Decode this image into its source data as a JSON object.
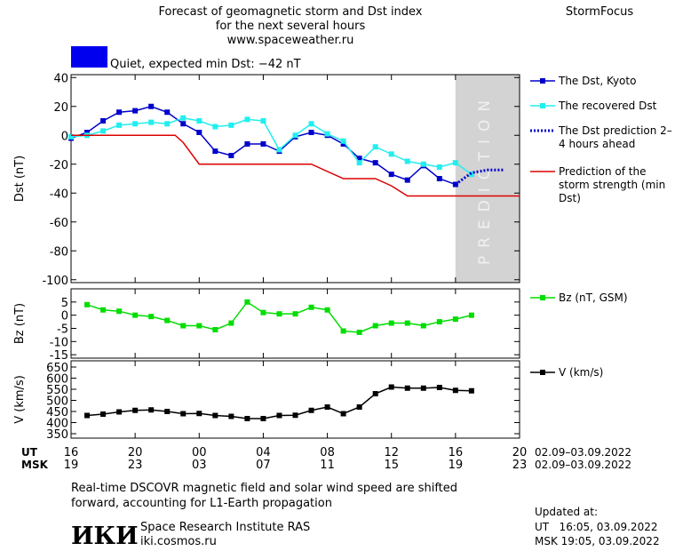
{
  "header": {
    "title_lines": [
      "Forecast of geomagnetic storm and Dst index",
      "for the next several hours",
      "www.spaceweather.ru"
    ],
    "brand": "StormFocus",
    "status": "Quiet, expected min Dst: −42 nT",
    "status_color": "#0000ee"
  },
  "chart_data": [
    {
      "type": "line",
      "ylabel": "Dst (nT)",
      "ylim": [
        -102,
        42
      ],
      "yticks": [
        40,
        20,
        0,
        -20,
        -40,
        -60,
        -80,
        -100
      ],
      "prediction_label": "PREDICTION",
      "series": [
        {
          "name": "The Dst, Kyoto",
          "color": "#0000cc",
          "style": "markers",
          "x": [
            16,
            17,
            18,
            19,
            20,
            21,
            22,
            23,
            24,
            25,
            26,
            27,
            28,
            29,
            30,
            31,
            32,
            33,
            34,
            35,
            36,
            37,
            38,
            39,
            40
          ],
          "values": [
            -2,
            2,
            10,
            16,
            17,
            20,
            16,
            8,
            2,
            -11,
            -14,
            -6,
            -6,
            -11,
            -1,
            2,
            0,
            -6,
            -16,
            -19,
            -27,
            -31,
            -21,
            -30,
            -34
          ]
        },
        {
          "name": "The recovered Dst",
          "color": "#22eeee",
          "style": "markers",
          "x": [
            16,
            17,
            18,
            19,
            20,
            21,
            22,
            23,
            24,
            25,
            26,
            27,
            28,
            29,
            30,
            31,
            32,
            33,
            34,
            35,
            36,
            37,
            38,
            39,
            40,
            41
          ],
          "values": [
            -1,
            0,
            3,
            7,
            8,
            9,
            8,
            12,
            10,
            6,
            7,
            11,
            10,
            -10,
            0,
            8,
            1,
            -4,
            -19,
            -8,
            -13,
            -18,
            -20,
            -22,
            -19,
            -27
          ]
        },
        {
          "name": "The Dst prediction 2–4 hours ahead",
          "color": "#0000cc",
          "style": "dotted",
          "x": [
            40,
            41,
            42,
            43
          ],
          "values": [
            -34,
            -26,
            -24,
            -24
          ]
        },
        {
          "name": "Prediction of the storm strength (min Dst)",
          "color": "#dd0000",
          "style": "plain",
          "x": [
            16,
            22.5,
            23,
            24,
            31,
            33,
            35,
            36,
            37,
            44
          ],
          "values": [
            0,
            0,
            -5,
            -20,
            -20,
            -30,
            -30,
            -35,
            -42,
            -42
          ]
        }
      ]
    },
    {
      "type": "line",
      "ylabel": "Bz (nT)",
      "ylim": [
        -16.3,
        10
      ],
      "yticks": [
        5,
        0,
        -5,
        -10,
        -15
      ],
      "xlim": [
        16,
        44
      ],
      "series": [
        {
          "name": "Bz (nT, GSM)",
          "color": "#00dd00",
          "style": "markers",
          "x": [
            17,
            18,
            19,
            20,
            21,
            22,
            23,
            24,
            25,
            26,
            27,
            28,
            29,
            30,
            31,
            32,
            33,
            34,
            35,
            36,
            37,
            38,
            39,
            40,
            41
          ],
          "values": [
            4,
            2,
            1.5,
            0,
            -0.5,
            -2,
            -4,
            -4,
            -5.5,
            -3,
            5,
            1,
            0.5,
            0.5,
            3,
            2,
            -6,
            -6.5,
            -4,
            -3,
            -3,
            -4,
            -2.5,
            -1.5,
            0
          ]
        }
      ]
    },
    {
      "type": "line",
      "ylabel": "V (km/s)",
      "ylim": [
        330,
        678
      ],
      "yticks": [
        650,
        600,
        550,
        500,
        450,
        400,
        350
      ],
      "xlabel": "UT",
      "x2label": "MSK",
      "x_range_label": "02.09–03.09.2022",
      "x2_range_label": "02.09–03.09.2022",
      "xticks": [
        {
          "value": 16,
          "label": "16"
        },
        {
          "value": 20,
          "label": "20"
        },
        {
          "value": 24,
          "label": "00"
        },
        {
          "value": 28,
          "label": "04"
        },
        {
          "value": 32,
          "label": "08"
        },
        {
          "value": 36,
          "label": "12"
        },
        {
          "value": 40,
          "label": "16"
        },
        {
          "value": 44,
          "label": "20"
        }
      ],
      "x2ticks": [
        {
          "value": 16,
          "label": "19"
        },
        {
          "value": 20,
          "label": "23"
        },
        {
          "value": 24,
          "label": "03"
        },
        {
          "value": 28,
          "label": "07"
        },
        {
          "value": 32,
          "label": "11"
        },
        {
          "value": 36,
          "label": "15"
        },
        {
          "value": 40,
          "label": "19"
        },
        {
          "value": 44,
          "label": "23"
        }
      ],
      "series": [
        {
          "name": "V (km/s)",
          "color": "#000000",
          "style": "markers",
          "x": [
            17,
            18,
            19,
            20,
            21,
            22,
            23,
            24,
            25,
            26,
            27,
            28,
            29,
            30,
            31,
            32,
            33,
            34,
            35,
            36,
            37,
            38,
            39,
            40,
            41
          ],
          "values": [
            432,
            438,
            448,
            455,
            457,
            450,
            440,
            441,
            432,
            428,
            418,
            418,
            432,
            433,
            455,
            470,
            440,
            470,
            530,
            560,
            555,
            555,
            558,
            545,
            543
          ]
        }
      ]
    }
  ],
  "footer": {
    "note_lines": [
      "Real-time DSCOVR magnetic field and solar wind speed are shifted",
      "forward, accounting for L1-Earth propagation"
    ],
    "logo": "ИКИ",
    "institute": "Space Research Institute RAS",
    "site": "iki.cosmos.ru",
    "updated_title": "Updated at:",
    "updated_lines": [
      "UT   16:05, 03.09.2022",
      "MSK 19:05, 03.09.2022"
    ]
  }
}
